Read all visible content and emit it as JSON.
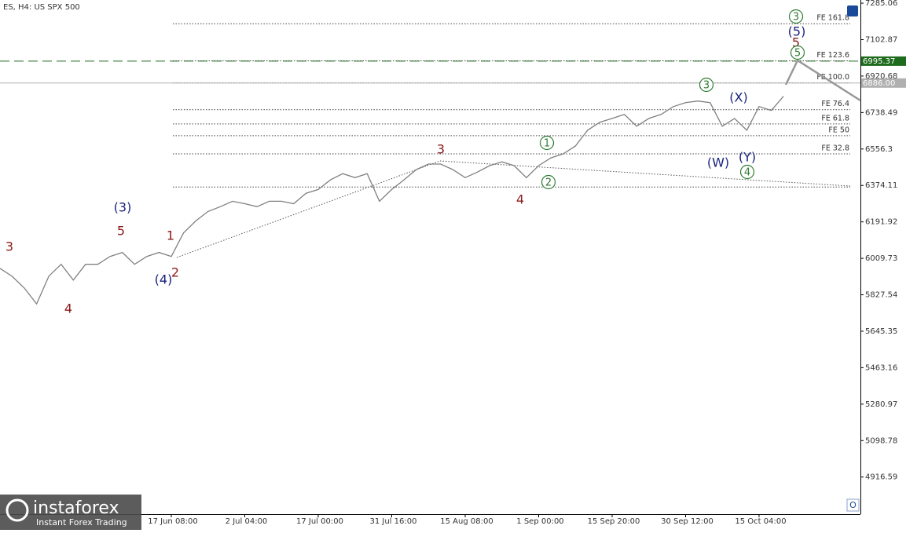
{
  "chart_data": {
    "type": "line",
    "title": "ES, H4:  US SPX 500",
    "categories": [
      null,
      null,
      null,
      null,
      null,
      null,
      null,
      null,
      null,
      null,
      null,
      null,
      null,
      null,
      "17 Jun 08:00",
      null,
      null,
      null,
      null,
      null,
      "2 Jul 04:00",
      null,
      null,
      null,
      null,
      null,
      "17 Jul 00:00",
      null,
      null,
      null,
      null,
      null,
      "31 Jul 16:00",
      null,
      null,
      null,
      null,
      null,
      "15 Aug 08:00",
      null,
      null,
      null,
      null,
      null,
      "1 Sep 00:00",
      null,
      null,
      null,
      null,
      null,
      "15 Sep 20:00",
      null,
      null,
      null,
      null,
      null,
      "30 Sep 12:00",
      null,
      null,
      null,
      null,
      null,
      "15 Oct 04:00",
      null,
      null
    ],
    "series": [
      {
        "name": "US SPX 500",
        "color": "#808080",
        "values": [
          5960,
          5920,
          5861,
          5782,
          5921,
          5980,
          5901,
          5980,
          5980,
          6019,
          6039,
          5980,
          6019,
          6039,
          6019,
          6137,
          6197,
          6244,
          6268,
          6295,
          6283,
          6268,
          6295,
          6295,
          6283,
          6335,
          6354,
          6402,
          6433,
          6413,
          6433,
          6295,
          6354,
          6402,
          6453,
          6481,
          6481,
          6453,
          6413,
          6441,
          6473,
          6492,
          6473,
          6413,
          6473,
          6512,
          6532,
          6571,
          6650,
          6690,
          6709,
          6729,
          6670,
          6709,
          6729,
          6768,
          6788,
          6796,
          6788,
          6670,
          6709,
          6650,
          6768,
          6749,
          6820
        ]
      }
    ],
    "ylim": [
      4731,
      7301
    ],
    "yticks": [
      4916.59,
      5098.78,
      5280.97,
      5463.16,
      5645.35,
      5827.54,
      6009.73,
      6191.92,
      6374.11,
      6556.3,
      6738.49,
      6920.68,
      7102.87,
      7285.06
    ],
    "fe_levels": [
      {
        "label": "FE 161.8",
        "value": 7182.5
      },
      {
        "label": "FE 123.6",
        "value": 6997.1
      },
      {
        "label": "FE 100.0",
        "value": 6886.7
      },
      {
        "label": "FE 76.4",
        "value": 6752.7
      },
      {
        "label": "FE 61.8",
        "value": 6681.7
      },
      {
        "label": "FE 50",
        "value": 6622.5
      },
      {
        "label": "FE 32.8",
        "value": 6531.8
      },
      {
        "value": 6366.2
      }
    ],
    "price_lines": [
      {
        "value": 6995.37,
        "label": "6995.37",
        "color": "#1e6b1e",
        "dashed": true
      },
      {
        "value": 6886.0,
        "label": "6886.00",
        "color": "#b0b0b0",
        "dashed": false
      }
    ],
    "annotations": [
      {
        "text": "3",
        "color": "#8b1a1a"
      },
      {
        "text": "4",
        "color": "#8b1a1a"
      },
      {
        "text": "(3)",
        "color": "#1a237e"
      },
      {
        "text": "5",
        "color": "#8b1a1a"
      },
      {
        "text": "1",
        "color": "#8b1a1a"
      },
      {
        "text": "(4)",
        "color": "#1a237e"
      },
      {
        "text": "2",
        "color": "#8b1a1a"
      },
      {
        "text": "3",
        "color": "#8b1a1a"
      },
      {
        "text": "4",
        "color": "#8b1a1a"
      },
      {
        "text": "1",
        "color": "#2e7d32",
        "circled": true
      },
      {
        "text": "2",
        "color": "#2e7d32",
        "circled": true
      },
      {
        "text": "3",
        "color": "#2e7d32",
        "circled": true
      },
      {
        "text": "(X)",
        "color": "#1a237e"
      },
      {
        "text": "(W)",
        "color": "#1a237e"
      },
      {
        "text": "(Y)",
        "color": "#1a237e"
      },
      {
        "text": "4",
        "color": "#2e7d32",
        "circled": true
      },
      {
        "text": "3",
        "color": "#2e7d32",
        "circled": true
      },
      {
        "text": "(5)",
        "color": "#1a237e"
      },
      {
        "text": "5",
        "color": "#8b1a1a"
      },
      {
        "text": "5",
        "color": "#2e7d32",
        "circled": true
      }
    ],
    "logo": {
      "brand": "instaforex",
      "tagline": "Instant Forex Trading"
    }
  }
}
